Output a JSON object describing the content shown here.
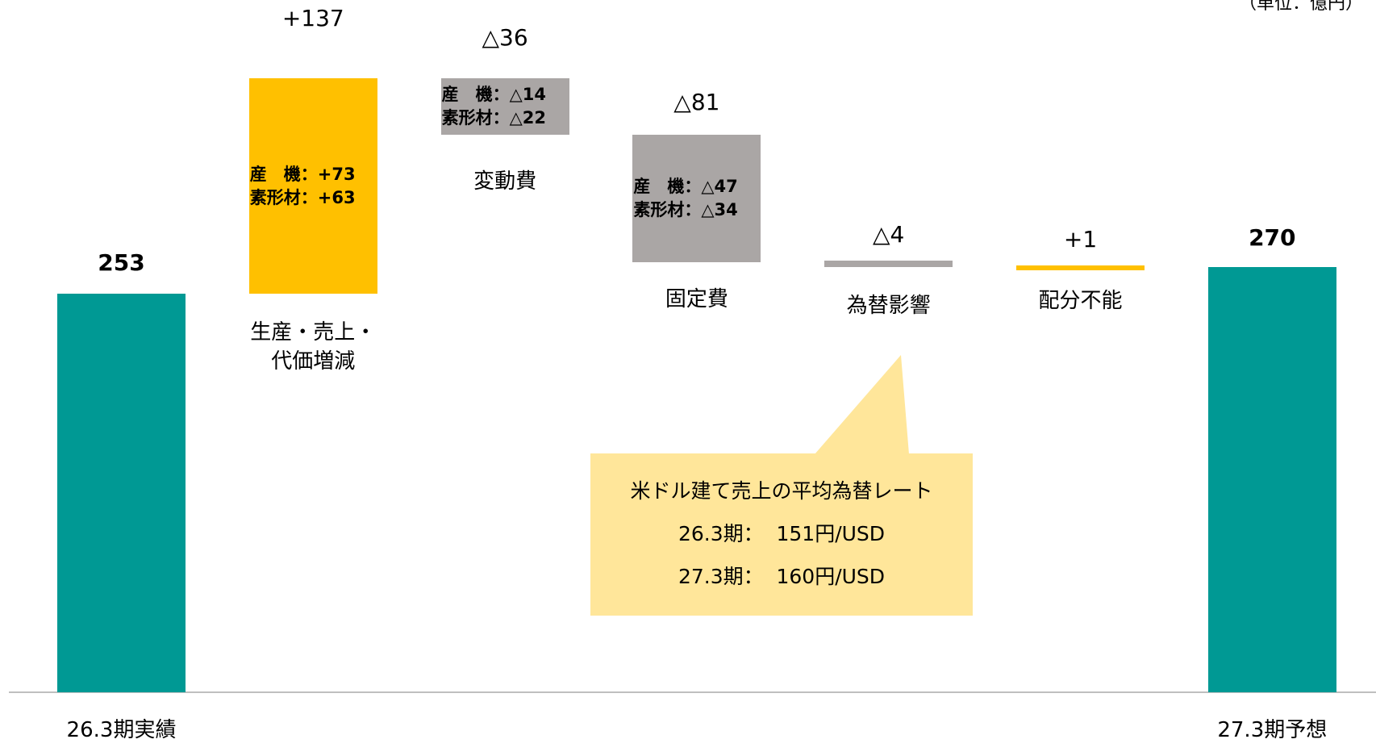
{
  "chart_data": {
    "type": "waterfall",
    "unit_note": "（単位：億円）",
    "categories": [
      "26.3期実績",
      "生産・売上・\n代価増減",
      "変動費",
      "固定費",
      "為替影響",
      "配分不能",
      "27.3期予想"
    ],
    "values": [
      253,
      137,
      -36,
      -81,
      -4,
      1,
      270
    ],
    "value_labels": [
      "253",
      "+137",
      "△36",
      "△81",
      "△4",
      "+1",
      "270"
    ],
    "colors": [
      "#009994",
      "#ffc000",
      "#aaa6a5",
      "#aaa6a5",
      "#aaa6a5",
      "#ffc000",
      "#009994"
    ],
    "breakdown": [
      null,
      [
        "産　機：+73",
        "素形材：+63"
      ],
      [
        "産　機：△14",
        "素形材：△22"
      ],
      [
        "産　機：△47",
        "素形材：△34"
      ],
      null,
      null,
      null
    ],
    "callout": {
      "lines": [
        "米ドル建て売上の平均為替レート",
        "26.3期：  151円/USD",
        "27.3期：  160円/USD"
      ],
      "color": "#ffe69a"
    }
  }
}
